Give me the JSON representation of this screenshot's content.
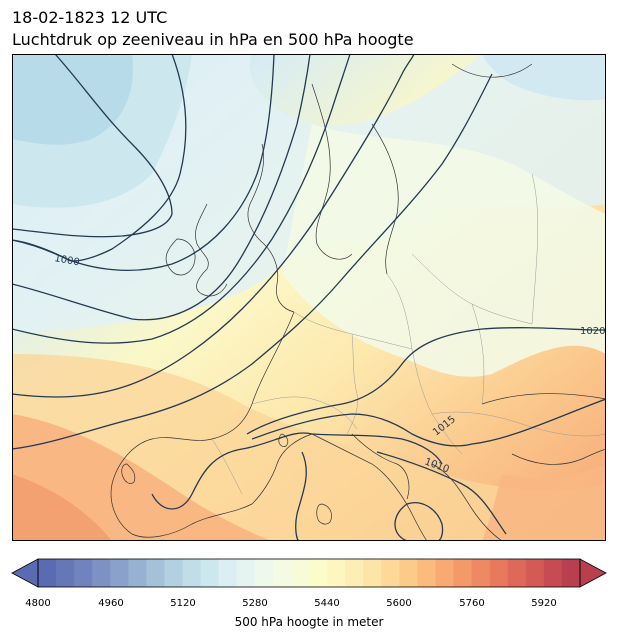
{
  "header": {
    "date_time": "18-02-1823 12 UTC",
    "subtitle": "Luchtdruk op zeeniveau in hPa en 500 hPa hoogte"
  },
  "map": {
    "region": "Europe",
    "contour_labels": [
      "1000",
      "1020",
      "1015",
      "1010"
    ],
    "colors": {
      "low_height": "#5e72b5",
      "mid_height": "#fdfccf",
      "high_height": "#b3344a",
      "isobar_line": "#243a52",
      "coastline": "#333333",
      "border": "#9a9a9a"
    }
  },
  "colorbar": {
    "label": "500 hPa hoogte in meter",
    "ticks": [
      "4800",
      "4960",
      "5120",
      "5280",
      "5440",
      "5600",
      "5760",
      "5920"
    ],
    "min": 4800,
    "max": 5960,
    "step": 40,
    "colors": [
      "#5b6bb2",
      "#6677b8",
      "#7183be",
      "#7d91c4",
      "#8aa1cb",
      "#97b1d2",
      "#a4c1d9",
      "#b2d0e1",
      "#c0dde8",
      "#cde7ee",
      "#dbeef3",
      "#e6f4f1",
      "#eef8eb",
      "#f4fae3",
      "#f8fbd7",
      "#fcfccb",
      "#fdf6c1",
      "#fdeeb5",
      "#fde4a7",
      "#fdd898",
      "#fccb8a",
      "#fbbb7d",
      "#f8aa72",
      "#f49a69",
      "#ef8963",
      "#e8795d",
      "#df6958",
      "#d45a55",
      "#c74b52",
      "#b8404e"
    ]
  }
}
